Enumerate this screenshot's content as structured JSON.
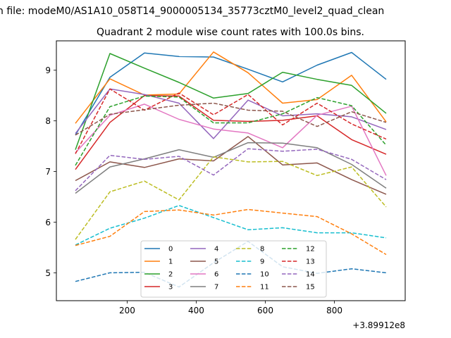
{
  "figure": {
    "suptitle": "n file: modeM0/AS1A10_058T14_9000005134_35773cztM0_level2_quad_clean",
    "title": "Quadrant 2 module wise count rates with 100.0s bins."
  },
  "chart_data": {
    "type": "line",
    "title": "Quadrant 2 module wise count rates with 100.0s bins.",
    "xlabel": "",
    "ylabel": "",
    "x_offset_label": "+3.89912e8",
    "x": [
      50,
      150,
      250,
      350,
      450,
      550,
      650,
      750,
      850,
      950
    ],
    "xlim": [
      -5,
      1005
    ],
    "ylim": [
      4.45,
      9.58
    ],
    "xticks": [
      200,
      400,
      600,
      800
    ],
    "yticks": [
      5,
      6,
      7,
      8,
      9
    ],
    "grid": false,
    "legend": {
      "placement": "lower-center",
      "columns": 4
    },
    "series": [
      {
        "name": "0",
        "color": "#1f77b4",
        "dash": "solid",
        "values": [
          7.72,
          8.86,
          9.34,
          9.27,
          9.26,
          9.02,
          8.77,
          9.1,
          9.35,
          8.82
        ]
      },
      {
        "name": "1",
        "color": "#ff7f0e",
        "dash": "solid",
        "values": [
          7.95,
          8.83,
          8.51,
          8.53,
          9.36,
          8.95,
          8.35,
          8.42,
          8.9,
          7.98
        ]
      },
      {
        "name": "2",
        "color": "#2ca02c",
        "dash": "solid",
        "values": [
          7.43,
          9.33,
          9.04,
          8.76,
          8.45,
          8.54,
          8.96,
          8.82,
          8.7,
          8.15
        ]
      },
      {
        "name": "3",
        "color": "#d62728",
        "dash": "solid",
        "values": [
          7.04,
          7.97,
          8.5,
          8.49,
          8.01,
          7.99,
          8.01,
          8.1,
          7.63,
          7.34
        ]
      },
      {
        "name": "4",
        "color": "#9467bd",
        "dash": "solid",
        "values": [
          7.75,
          8.63,
          8.52,
          8.35,
          7.65,
          8.41,
          8.1,
          8.14,
          8.08,
          7.83
        ]
      },
      {
        "name": "5",
        "color": "#8c564b",
        "dash": "solid",
        "values": [
          6.82,
          7.19,
          7.08,
          7.25,
          7.21,
          7.69,
          7.13,
          7.17,
          6.84,
          6.55
        ]
      },
      {
        "name": "6",
        "color": "#e377c2",
        "dash": "solid",
        "values": [
          7.37,
          8.11,
          8.33,
          8.03,
          7.84,
          7.76,
          7.47,
          8.11,
          8.29,
          6.92
        ]
      },
      {
        "name": "7",
        "color": "#7f7f7f",
        "dash": "solid",
        "values": [
          6.57,
          7.09,
          7.25,
          7.43,
          7.28,
          7.57,
          7.56,
          7.47,
          7.14,
          6.67
        ]
      },
      {
        "name": "8",
        "color": "#bcbd22",
        "dash": "dashed",
        "values": [
          5.66,
          6.6,
          6.81,
          6.44,
          7.29,
          7.19,
          7.2,
          6.92,
          7.09,
          6.3
        ]
      },
      {
        "name": "9",
        "color": "#17becf",
        "dash": "dashed",
        "values": [
          5.55,
          5.88,
          6.08,
          6.33,
          6.09,
          5.85,
          5.89,
          5.79,
          5.79,
          5.69
        ]
      },
      {
        "name": "10",
        "color": "#1f77b4",
        "dash": "dashed",
        "values": [
          4.83,
          5.0,
          5.01,
          4.72,
          5.2,
          5.62,
          5.12,
          4.99,
          5.08,
          5.0
        ]
      },
      {
        "name": "11",
        "color": "#ff7f0e",
        "dash": "dashed",
        "values": [
          5.54,
          5.72,
          6.21,
          6.24,
          6.14,
          6.25,
          6.18,
          6.11,
          5.77,
          5.36
        ]
      },
      {
        "name": "12",
        "color": "#2ca02c",
        "dash": "dashed",
        "values": [
          7.12,
          8.28,
          8.49,
          8.47,
          7.96,
          7.96,
          8.14,
          8.46,
          8.3,
          7.52
        ]
      },
      {
        "name": "13",
        "color": "#d62728",
        "dash": "dashed",
        "values": [
          7.35,
          8.63,
          8.21,
          8.55,
          8.12,
          8.52,
          7.92,
          8.35,
          7.94,
          7.64
        ]
      },
      {
        "name": "14",
        "color": "#9467bd",
        "dash": "dashed",
        "values": [
          6.62,
          7.32,
          7.24,
          7.3,
          6.93,
          7.45,
          7.4,
          7.44,
          7.24,
          6.84
        ]
      },
      {
        "name": "15",
        "color": "#8c564b",
        "dash": "dashed",
        "values": [
          7.72,
          8.13,
          8.22,
          8.31,
          8.35,
          8.21,
          8.19,
          7.89,
          8.18,
          7.97
        ]
      }
    ]
  }
}
